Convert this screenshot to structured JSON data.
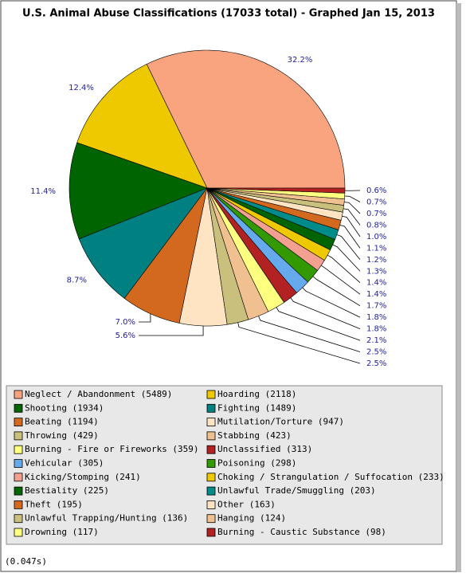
{
  "chart_data": {
    "type": "pie",
    "title": "U.S. Animal Abuse Classifications (17033 total) - Graphed Jan 15, 2013",
    "categories": [
      "Neglect / Abandonment (5489)",
      "Hoarding (2118)",
      "Shooting (1934)",
      "Fighting (1489)",
      "Beating (1194)",
      "Mutilation/Torture (947)",
      "Throwing (429)",
      "Stabbing (423)",
      "Burning - Fire or Fireworks (359)",
      "Unclassified (313)",
      "Vehicular (305)",
      "Poisoning (298)",
      "Kicking/Stomping (241)",
      "Choking / Strangulation / Suffocation (233)",
      "Bestiality (225)",
      "Unlawful Trade/Smuggling (203)",
      "Theft (195)",
      "Other (163)",
      "Unlawful Trapping/Hunting (136)",
      "Hanging (124)",
      "Drowning (117)",
      "Burning - Caustic Substance (98)"
    ],
    "values": [
      5489,
      2118,
      1934,
      1489,
      1194,
      947,
      429,
      423,
      359,
      313,
      305,
      298,
      241,
      233,
      225,
      203,
      195,
      163,
      136,
      124,
      117,
      98
    ],
    "value_labels": [
      "32.2%",
      "12.4%",
      "11.4%",
      "8.7%",
      "7.0%",
      "5.6%",
      "2.5%",
      "2.5%",
      "2.1%",
      "1.8%",
      "1.8%",
      "1.7%",
      "1.4%",
      "1.4%",
      "1.3%",
      "1.2%",
      "1.1%",
      "1.0%",
      "0.8%",
      "0.7%",
      "0.7%",
      "0.6%"
    ],
    "colors": [
      "#f9a47e",
      "#eec900",
      "#006400",
      "#008080",
      "#d2691e",
      "#ffe4c4",
      "#c8c07c",
      "#f0c090",
      "#ffff80",
      "#b22222",
      "#66aaee",
      "#339900",
      "#f4a090",
      "#eec900",
      "#006400",
      "#008b8b",
      "#d2691e",
      "#ffe4c4",
      "#c8c07c",
      "#f0c090",
      "#ffff80",
      "#b22222"
    ]
  },
  "footer": "(0.047s)"
}
